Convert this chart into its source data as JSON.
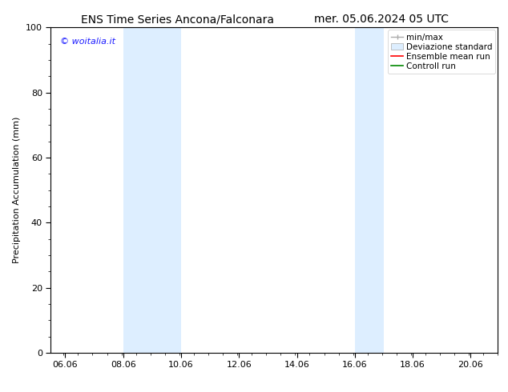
{
  "title_left": "ENS Time Series Ancona/Falconara",
  "title_right": "mer. 05.06.2024 05 UTC",
  "ylabel": "Precipitation Accumulation (mm)",
  "watermark": "© woitalia.it",
  "watermark_color": "#1a1aff",
  "xlim_start": 5.56,
  "xlim_end": 21.0,
  "ylim": [
    0,
    100
  ],
  "yticks": [
    0,
    20,
    40,
    60,
    80,
    100
  ],
  "xticks": [
    6.06,
    8.06,
    10.06,
    12.06,
    14.06,
    16.06,
    18.06,
    20.06
  ],
  "xtick_labels": [
    "06.06",
    "08.06",
    "10.06",
    "12.06",
    "14.06",
    "16.06",
    "18.06",
    "20.06"
  ],
  "shaded_regions": [
    {
      "x_start": 8.06,
      "x_end": 10.06
    },
    {
      "x_start": 16.06,
      "x_end": 17.06
    }
  ],
  "shaded_color": "#ddeeff",
  "background_color": "#ffffff",
  "legend_items": [
    {
      "label": "min/max",
      "color": "#aaaaaa",
      "style": "errorbar"
    },
    {
      "label": "Deviazione standard",
      "color": "#ddeeff",
      "style": "filled"
    },
    {
      "label": "Ensemble mean run",
      "color": "#ff0000",
      "style": "line"
    },
    {
      "label": "Controll run",
      "color": "#008800",
      "style": "line"
    }
  ],
  "title_fontsize": 10,
  "tick_fontsize": 8,
  "ylabel_fontsize": 8,
  "legend_fontsize": 7.5,
  "watermark_fontsize": 8
}
